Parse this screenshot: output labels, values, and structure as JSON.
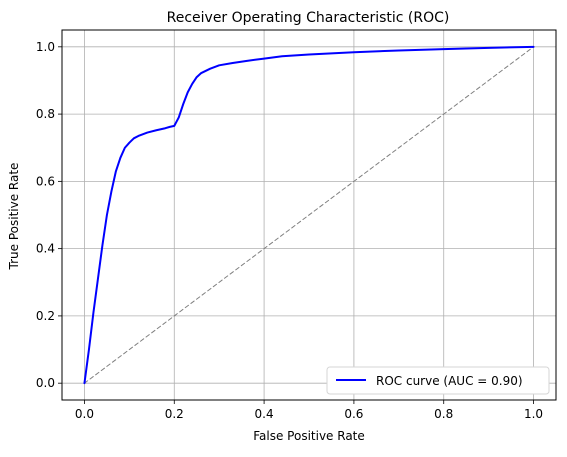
{
  "chart_data": {
    "type": "line",
    "title": "Receiver Operating Characteristic (ROC)",
    "xlabel": "False Positive Rate",
    "ylabel": "True Positive Rate",
    "xlim": [
      -0.05,
      1.05
    ],
    "ylim": [
      -0.05,
      1.05
    ],
    "xticks": [
      0.0,
      0.2,
      0.4,
      0.6,
      0.8,
      1.0
    ],
    "yticks": [
      0.0,
      0.2,
      0.4,
      0.6,
      0.8,
      1.0
    ],
    "xtick_labels": [
      "0.0",
      "0.2",
      "0.4",
      "0.6",
      "0.8",
      "1.0"
    ],
    "ytick_labels": [
      "0.0",
      "0.2",
      "0.4",
      "0.6",
      "0.8",
      "1.0"
    ],
    "grid": true,
    "legend": {
      "location": "lower-right",
      "entries": [
        "ROC curve (AUC = 0.90)"
      ]
    },
    "series": [
      {
        "name": "ROC curve (AUC = 0.90)",
        "color": "#0000ff",
        "style": "solid",
        "x": [
          0.0,
          0.01,
          0.02,
          0.03,
          0.04,
          0.05,
          0.06,
          0.07,
          0.08,
          0.09,
          0.1,
          0.11,
          0.12,
          0.14,
          0.16,
          0.18,
          0.19,
          0.2,
          0.21,
          0.22,
          0.23,
          0.24,
          0.25,
          0.26,
          0.28,
          0.3,
          0.33,
          0.36,
          0.4,
          0.44,
          0.5,
          0.6,
          0.7,
          0.8,
          0.9,
          1.0
        ],
        "y": [
          0.0,
          0.1,
          0.21,
          0.31,
          0.41,
          0.5,
          0.57,
          0.63,
          0.67,
          0.7,
          0.715,
          0.728,
          0.735,
          0.745,
          0.752,
          0.758,
          0.762,
          0.765,
          0.79,
          0.83,
          0.865,
          0.89,
          0.91,
          0.922,
          0.935,
          0.945,
          0.952,
          0.958,
          0.965,
          0.972,
          0.977,
          0.984,
          0.989,
          0.993,
          0.997,
          1.0
        ]
      },
      {
        "name": "",
        "color": "#808080",
        "style": "dashed",
        "x": [
          0.0,
          1.0
        ],
        "y": [
          0.0,
          1.0
        ]
      }
    ]
  }
}
